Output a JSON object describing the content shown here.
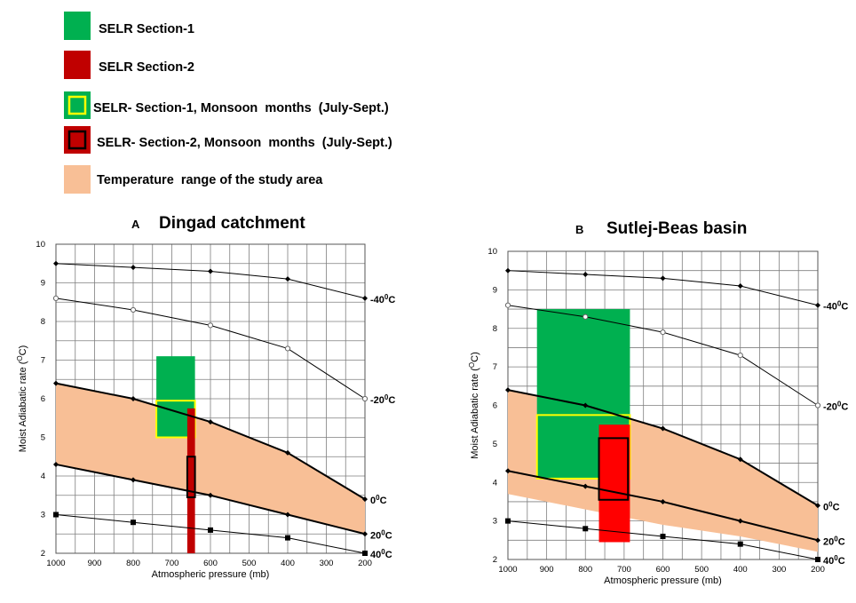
{
  "legend": {
    "items": [
      {
        "label": "SELR Section-1",
        "fill": "#00b050",
        "border": "none"
      },
      {
        "label": "SELR Section-2",
        "fill": "#c00000",
        "border": "none"
      },
      {
        "label": "SELR- Section-1, Monsoon  months  (July-Sept.)",
        "fill": "#00b050",
        "border": "#ffff00"
      },
      {
        "label": "SELR- Section-2, Monsoon  months  (July-Sept.)",
        "fill": "#c00000",
        "border": "#000000"
      },
      {
        "label": "Temperature  range of the study area",
        "fill": "#f8bf96",
        "border": "none"
      }
    ]
  },
  "chart_data": [
    {
      "type": "line",
      "panel_letter": "A",
      "title": "Dingad catchment",
      "xlabel": "Atmospheric pressure (mb)",
      "ylabel": "Moist Adiabatic rate (°C)",
      "ylabel_main": "Moist Adiabatic rate (",
      "ylabel_sup": "O",
      "ylabel_end": "C)",
      "xlim": [
        1000,
        200
      ],
      "ylim": [
        2,
        10
      ],
      "xticks": [
        1000,
        900,
        800,
        700,
        600,
        500,
        400,
        300,
        200
      ],
      "yticks": [
        2,
        3,
        4,
        5,
        6,
        7,
        8,
        9,
        10
      ],
      "series": [
        {
          "name": "-40°C",
          "marker": "diamond",
          "x": [
            1000,
            800,
            600,
            400,
            200
          ],
          "y": [
            9.5,
            9.4,
            9.3,
            9.1,
            8.6
          ],
          "label": {
            "pre": "-40",
            "sup": "0",
            "post": "C"
          }
        },
        {
          "name": "-20°C",
          "marker": "open-circle",
          "x": [
            1000,
            800,
            600,
            400,
            200
          ],
          "y": [
            8.6,
            8.3,
            7.9,
            7.3,
            6.0
          ],
          "label": {
            "pre": "-20",
            "sup": "0",
            "post": "C"
          }
        },
        {
          "name": "0°C",
          "marker": "diamond",
          "x": [
            1000,
            800,
            600,
            400,
            200
          ],
          "y": [
            6.4,
            6.0,
            5.4,
            4.6,
            3.4
          ],
          "label": {
            "pre": "0",
            "sup": "0",
            "post": "C"
          }
        },
        {
          "name": "20°C",
          "marker": "diamond",
          "x": [
            1000,
            800,
            600,
            400,
            200
          ],
          "y": [
            4.3,
            3.9,
            3.5,
            3.0,
            2.5
          ],
          "label": {
            "pre": "20",
            "sup": "0",
            "post": "C"
          }
        },
        {
          "name": "40°C",
          "marker": "square",
          "x": [
            1000,
            800,
            600,
            400,
            200
          ],
          "y": [
            3.0,
            2.8,
            2.6,
            2.4,
            2.0
          ],
          "label": {
            "pre": "40",
            "sup": "0",
            "post": "C"
          }
        }
      ],
      "temperature_band": {
        "upper_x": [
          1000,
          800,
          600,
          400,
          200
        ],
        "upper_y": [
          6.4,
          6.0,
          5.4,
          4.6,
          3.4
        ],
        "lower_x": [
          1000,
          800,
          600,
          400,
          200
        ],
        "lower_y": [
          4.3,
          3.9,
          3.5,
          3.0,
          2.5
        ]
      },
      "selr_boxes": [
        {
          "name": "SELR Section-1",
          "x0": 740,
          "x1": 640,
          "y0": 5.0,
          "y1": 7.1,
          "fill": "#00b050",
          "stroke": "none"
        },
        {
          "name": "SELR Section-1 monsoon",
          "x0": 740,
          "x1": 640,
          "y0": 5.0,
          "y1": 5.95,
          "fill": "none",
          "stroke": "#ffff00"
        },
        {
          "name": "SELR Section-2",
          "x0": 660,
          "x1": 640,
          "y0": 2.0,
          "y1": 5.75,
          "fill": "#c00000",
          "stroke": "none"
        },
        {
          "name": "SELR Section-2 monsoon",
          "x0": 660,
          "x1": 640,
          "y0": 3.45,
          "y1": 4.5,
          "fill": "none",
          "stroke": "#000000"
        }
      ]
    },
    {
      "type": "line",
      "panel_letter": "B",
      "title": "Sutlej-Beas basin",
      "xlabel": "Atmospheric pressure (mb)",
      "ylabel": "Moist Adiabatic rate (°C)",
      "ylabel_main": "Moist Adiabatic rate (",
      "ylabel_sup": "O",
      "ylabel_end": "C)",
      "xlim": [
        1000,
        200
      ],
      "ylim": [
        2,
        10
      ],
      "xticks": [
        1000,
        900,
        800,
        700,
        600,
        500,
        400,
        300,
        200
      ],
      "yticks": [
        2,
        3,
        4,
        5,
        6,
        7,
        8,
        9,
        10
      ],
      "series": [
        {
          "name": "-40°C",
          "marker": "diamond",
          "x": [
            1000,
            800,
            600,
            400,
            200
          ],
          "y": [
            9.5,
            9.4,
            9.3,
            9.1,
            8.6
          ],
          "label": {
            "pre": "-40",
            "sup": "0",
            "post": "C"
          }
        },
        {
          "name": "-20°C",
          "marker": "open-circle",
          "x": [
            1000,
            800,
            600,
            400,
            200
          ],
          "y": [
            8.6,
            8.3,
            7.9,
            7.3,
            6.0
          ],
          "label": {
            "pre": "-20",
            "sup": "0",
            "post": "C"
          }
        },
        {
          "name": "0°C",
          "marker": "diamond",
          "x": [
            1000,
            800,
            600,
            400,
            200
          ],
          "y": [
            6.4,
            6.0,
            5.4,
            4.6,
            3.4
          ],
          "label": {
            "pre": "0",
            "sup": "0",
            "post": "C"
          }
        },
        {
          "name": "20°C",
          "marker": "diamond",
          "x": [
            1000,
            800,
            600,
            400,
            200
          ],
          "y": [
            4.3,
            3.9,
            3.5,
            3.0,
            2.5
          ],
          "label": {
            "pre": "20",
            "sup": "0",
            "post": "C"
          }
        },
        {
          "name": "40°C",
          "marker": "square",
          "x": [
            1000,
            800,
            600,
            400,
            200
          ],
          "y": [
            3.0,
            2.8,
            2.6,
            2.4,
            2.0
          ],
          "label": {
            "pre": "40",
            "sup": "0",
            "post": "C"
          }
        }
      ],
      "temperature_band": {
        "upper_x": [
          1000,
          800,
          600,
          400,
          200
        ],
        "upper_y": [
          6.4,
          6.0,
          5.4,
          4.6,
          3.4
        ],
        "lower_x": [
          1000,
          800,
          600,
          400,
          200
        ],
        "lower_y": [
          3.7,
          3.3,
          2.9,
          2.6,
          2.2
        ]
      },
      "selr_boxes": [
        {
          "name": "SELR Section-1",
          "x0": 925,
          "x1": 685,
          "y0": 4.1,
          "y1": 8.5,
          "fill": "#00b050",
          "stroke": "none"
        },
        {
          "name": "SELR Section-1 monsoon",
          "x0": 925,
          "x1": 685,
          "y0": 4.1,
          "y1": 5.75,
          "fill": "none",
          "stroke": "#ffff00"
        },
        {
          "name": "SELR Section-2",
          "x0": 765,
          "x1": 685,
          "y0": 2.45,
          "y1": 5.5,
          "fill": "#ff0000",
          "stroke": "none"
        },
        {
          "name": "SELR Section-2 monsoon",
          "x0": 765,
          "x1": 690,
          "y0": 3.55,
          "y1": 5.15,
          "fill": "none",
          "stroke": "#000000"
        }
      ]
    }
  ]
}
